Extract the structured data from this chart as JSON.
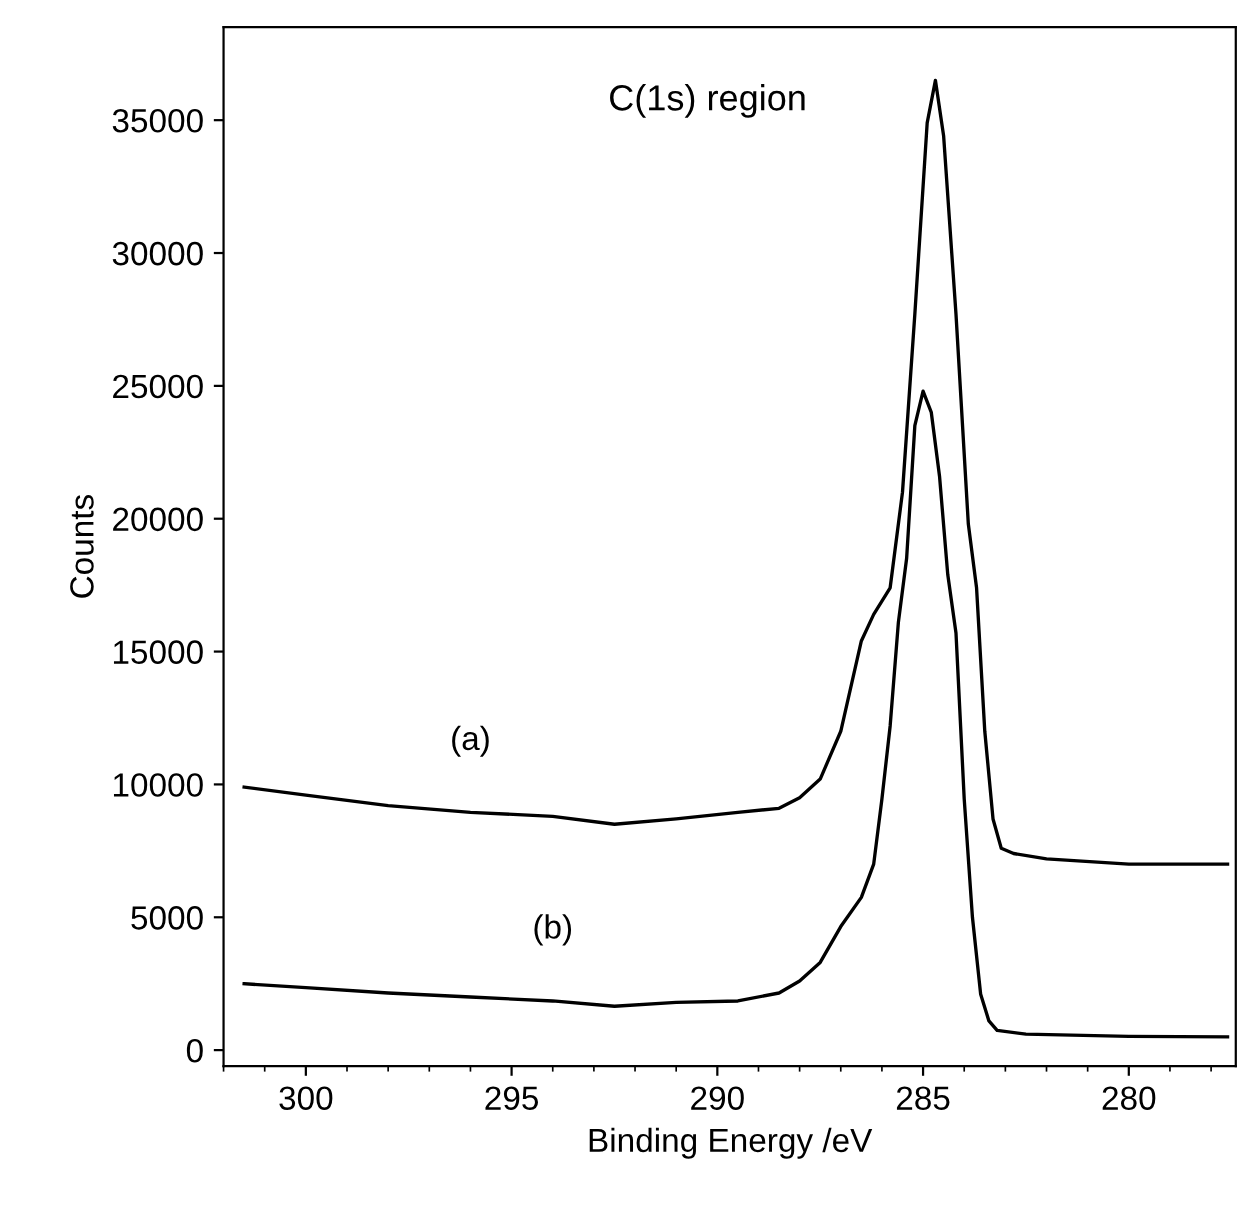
{
  "chart_data": {
    "type": "line",
    "xlabel": "Binding Energy /eV",
    "ylabel": "Counts",
    "annotations": [
      "C(1s) region"
    ],
    "xlim": [
      302,
      277.4
    ],
    "xticks": [
      300,
      295,
      290,
      285,
      280
    ],
    "ylim": [
      -600,
      38500
    ],
    "yticks": [
      0,
      5000,
      10000,
      15000,
      20000,
      25000,
      30000,
      35000
    ],
    "grid": false,
    "legend": false,
    "marker": "none",
    "line_style": "solid",
    "series": [
      {
        "name": "(a)",
        "color": "#000000",
        "x": [
          301.5,
          300,
          299,
          298,
          296,
          294,
          292.5,
          291,
          289.5,
          288.5,
          288,
          287.5,
          287,
          286.5,
          286.2,
          286.0,
          285.8,
          285.5,
          285.2,
          284.9,
          284.7,
          284.5,
          284.2,
          283.9,
          283.7,
          283.5,
          283.3,
          283.1,
          282.8,
          282,
          280,
          277.6
        ],
        "values": [
          9900,
          9600,
          9400,
          9200,
          8950,
          8800,
          8500,
          8700,
          8950,
          9100,
          9500,
          10200,
          12000,
          15400,
          16400,
          16900,
          17400,
          21000,
          27700,
          34900,
          36500,
          34400,
          27700,
          19800,
          17400,
          12000,
          8700,
          7600,
          7400,
          7200,
          7000,
          7000
        ]
      },
      {
        "name": "(b)",
        "color": "#000000",
        "x": [
          301.5,
          300,
          298,
          296,
          294,
          292.5,
          291,
          289.5,
          288.5,
          288,
          287.5,
          287,
          286.5,
          286.2,
          286.0,
          285.8,
          285.6,
          285.4,
          285.2,
          285.0,
          284.8,
          284.6,
          284.4,
          284.2,
          284.0,
          283.8,
          283.6,
          283.4,
          283.2,
          282.5,
          280,
          277.6
        ],
        "values": [
          2500,
          2350,
          2150,
          2000,
          1850,
          1650,
          1800,
          1850,
          2150,
          2600,
          3300,
          4650,
          5750,
          7000,
          9450,
          12200,
          16100,
          18500,
          23500,
          24800,
          24000,
          21600,
          17900,
          15700,
          9450,
          5000,
          2100,
          1100,
          740,
          600,
          520,
          500
        ]
      }
    ]
  }
}
